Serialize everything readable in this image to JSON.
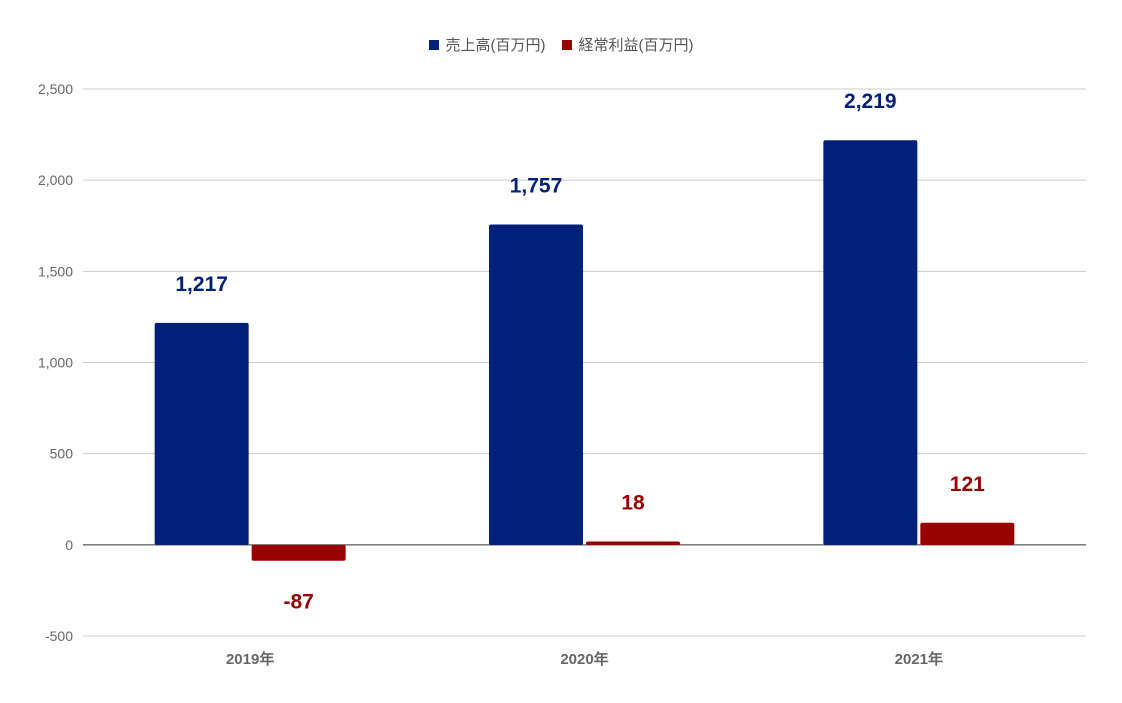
{
  "chart_data": {
    "type": "bar",
    "categories": [
      "2019年",
      "2020年",
      "2021年"
    ],
    "series": [
      {
        "name": "売上高(百万円)",
        "color": "#002079",
        "values": [
          1217,
          1757,
          2219
        ],
        "labels": [
          "1,217",
          "1,757",
          "2,219"
        ]
      },
      {
        "name": "経常利益(百万円)",
        "color": "#990000",
        "values": [
          -87,
          18,
          121
        ],
        "labels": [
          "-87",
          "18",
          "121"
        ]
      }
    ],
    "ylim": [
      -500,
      2500
    ],
    "yticks": [
      -500,
      0,
      500,
      1000,
      1500,
      2000,
      2500
    ],
    "ytick_labels": [
      "-500",
      "0",
      "500",
      "1,000",
      "1,500",
      "2,000",
      "2,500"
    ],
    "grid": true,
    "legend_position": "top-center",
    "title": "",
    "xlabel": "",
    "ylabel": ""
  }
}
